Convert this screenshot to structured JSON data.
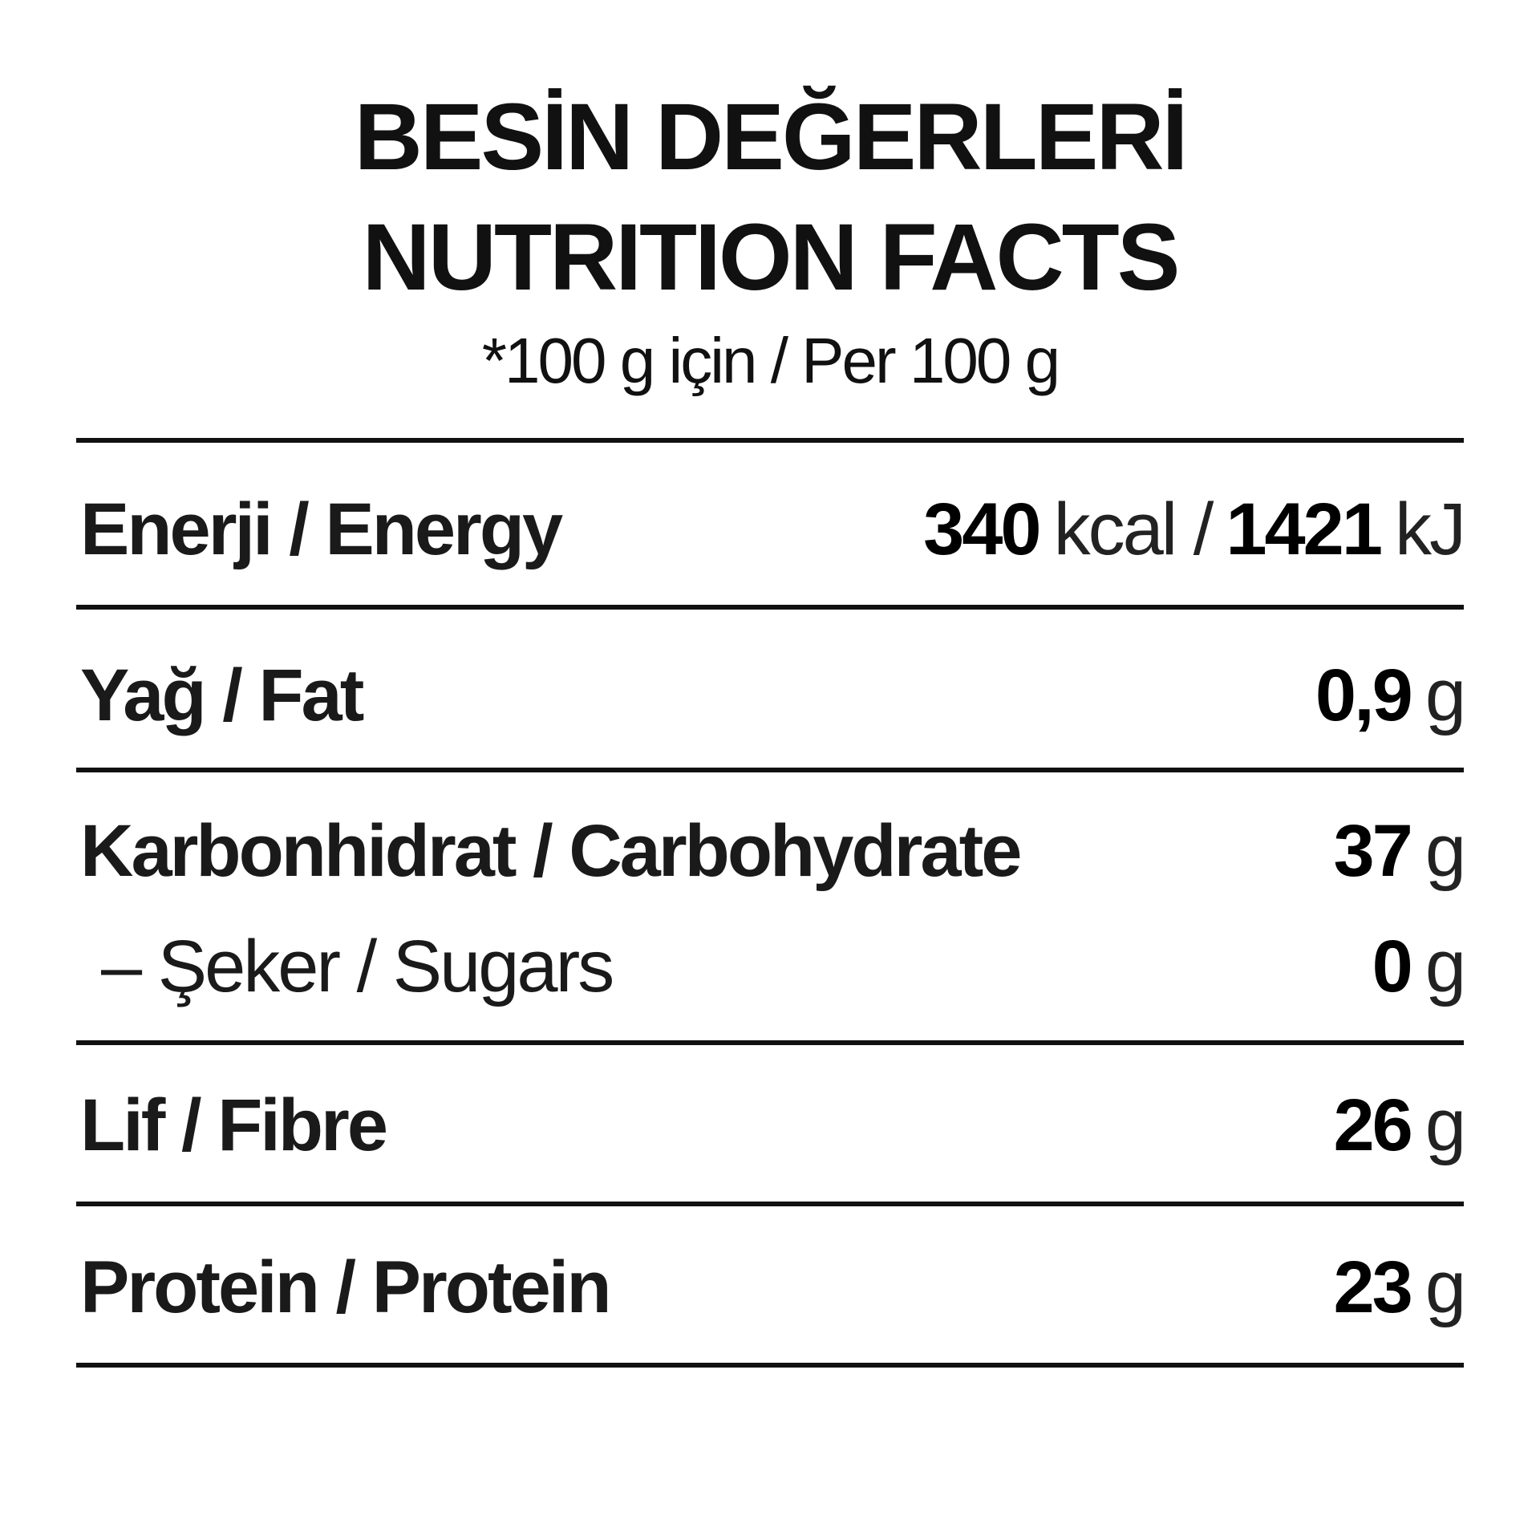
{
  "header": {
    "title_tr": "BESİN DEĞERLERİ",
    "title_en": "NUTRITION FACTS",
    "serving": "*100 g için / Per 100 g"
  },
  "rows": [
    {
      "label": "Enerji / Energy",
      "value": "340",
      "unit": "kcal /",
      "value2": "1421",
      "unit2": "kJ"
    },
    {
      "label": "Yağ / Fat",
      "value": "0,9",
      "unit": "g"
    },
    {
      "label": "Karbonhidrat / Carbohydrate",
      "value": "37",
      "unit": "g"
    },
    {
      "label": "– Şeker / Sugars",
      "value": "0",
      "unit": "g"
    },
    {
      "label": "Lif / Fibre",
      "value": "26",
      "unit": "g"
    },
    {
      "label": "Protein / Protein",
      "value": "23",
      "unit": "g"
    }
  ]
}
